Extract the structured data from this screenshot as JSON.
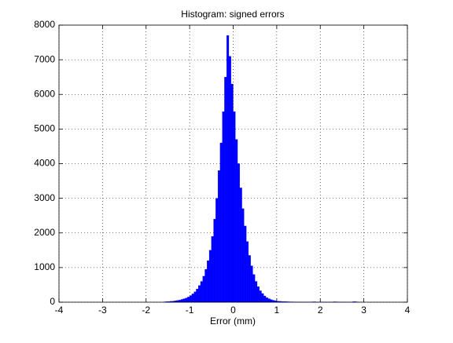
{
  "chart_data": {
    "type": "histogram",
    "title": "Histogram: signed errors",
    "x_label": "Error (mm)",
    "bins": [
      -1.6,
      -1.55,
      -1.5,
      -1.45,
      -1.4,
      -1.35,
      -1.3,
      -1.25,
      -1.2,
      -1.15,
      -1.1,
      -1.05,
      -1.0,
      -0.95,
      -0.9,
      -0.85,
      -0.8,
      -0.75,
      -0.7,
      -0.65,
      -0.6,
      -0.55,
      -0.5,
      -0.45,
      -0.4,
      -0.35,
      -0.3,
      -0.25,
      -0.2,
      -0.15,
      -0.1,
      -0.05,
      0,
      0.05,
      0.1,
      0.15,
      0.2,
      0.25,
      0.3,
      0.35,
      0.4,
      0.45,
      0.5,
      0.55,
      0.6,
      0.65,
      0.7,
      0.75,
      0.8,
      0.85,
      0.9,
      0.95,
      1.0,
      1.05,
      1.1,
      1.15,
      1.2,
      1.25,
      1.3,
      1.35,
      1.4,
      1.45,
      1.5,
      1.55,
      1.6,
      1.65,
      1.7,
      1.75,
      1.8,
      1.85,
      1.9,
      1.95,
      2.0,
      2.05,
      2.1,
      2.15,
      2.2,
      2.25,
      2.3,
      2.35,
      2.4,
      2.45,
      2.5,
      2.55,
      2.6,
      2.65,
      2.7,
      2.75,
      2.8,
      2.85,
      2.9,
      2.95,
      3.0
    ],
    "values": [
      10,
      15,
      20,
      25,
      30,
      40,
      50,
      60,
      80,
      100,
      120,
      150,
      190,
      240,
      300,
      380,
      480,
      600,
      750,
      950,
      1200,
      1500,
      1900,
      2400,
      3000,
      3800,
      4600,
      5500,
      6500,
      7700,
      7100,
      6300,
      5500,
      4700,
      4000,
      3300,
      2700,
      2200,
      1750,
      1350,
      1050,
      800,
      600,
      450,
      330,
      250,
      180,
      130,
      100,
      75,
      55,
      40,
      30,
      25,
      20,
      18,
      15,
      12,
      10,
      10,
      8,
      8,
      6,
      6,
      5,
      5,
      4,
      4,
      10,
      12,
      8,
      6,
      5,
      4,
      4,
      3,
      3,
      3,
      12,
      10,
      8,
      4,
      3,
      3,
      2,
      2,
      2,
      15,
      12,
      3,
      2,
      2
    ],
    "color": "#0000ff",
    "xlim": [
      -4,
      4
    ],
    "xticks": [
      -4,
      -3,
      -2,
      -1,
      0,
      1,
      2,
      3,
      4
    ],
    "ylim": [
      0,
      8000
    ],
    "yticks": [
      0,
      1000,
      2000,
      3000,
      4000,
      5000,
      6000,
      7000,
      8000
    ],
    "grid": true
  }
}
